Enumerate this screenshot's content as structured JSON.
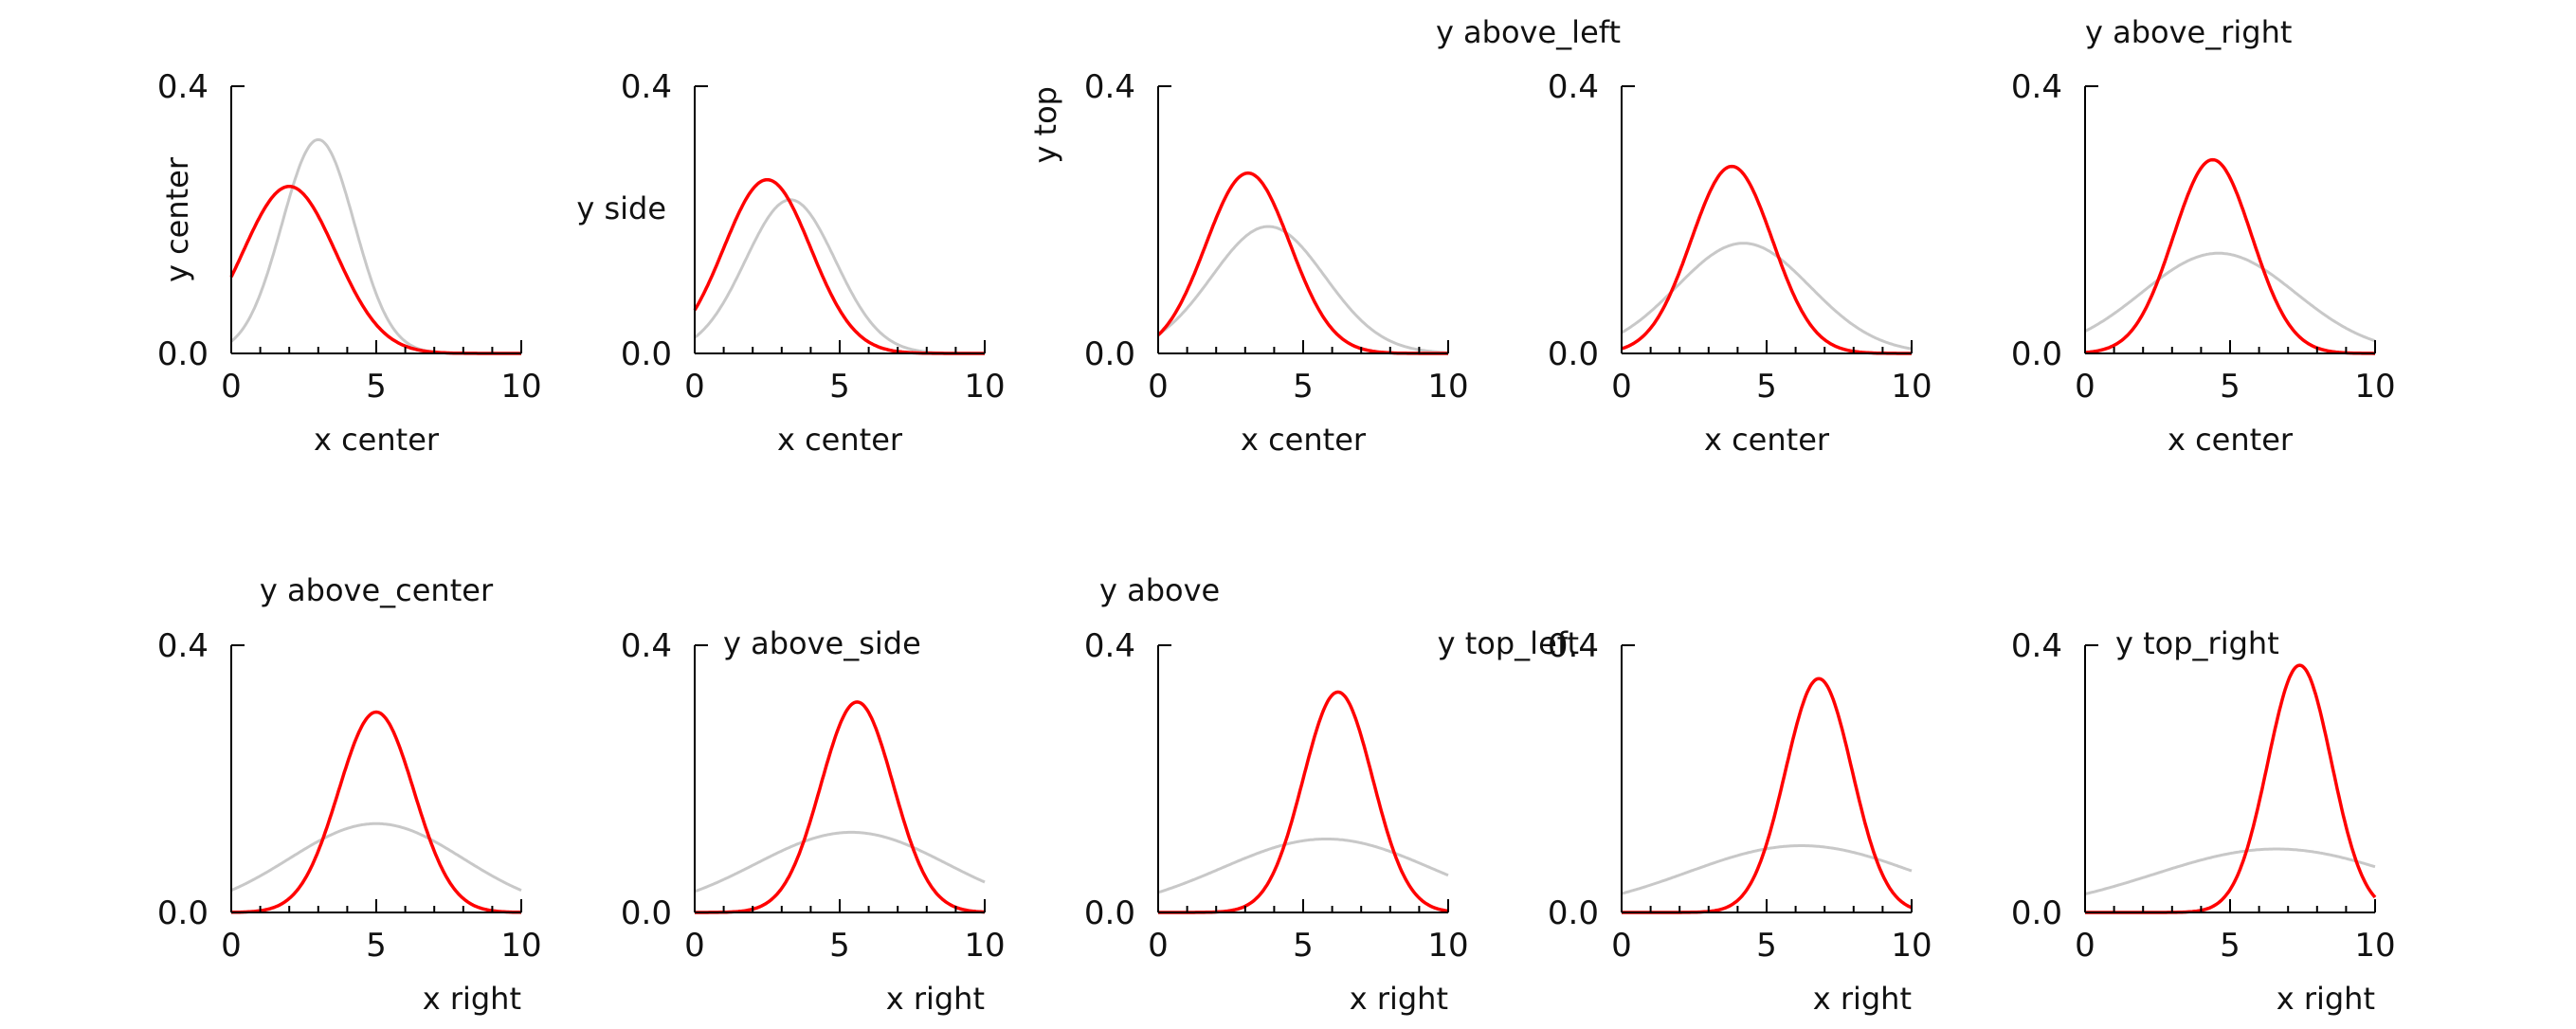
{
  "figure": {
    "background": "#ffffff",
    "axis_color": "#000000",
    "highlight_color": "#ff0000",
    "reference_color": "#c8c8c8",
    "shared_xlim": [
      0,
      10
    ],
    "shared_ylim": [
      0,
      0.4
    ],
    "x_ticks": [
      0,
      5,
      10
    ],
    "x_tick_labels": [
      "0",
      "5",
      "10"
    ],
    "y_ticks": [
      0,
      0.4
    ],
    "y_tick_labels": [
      "0.0",
      "0.4"
    ]
  },
  "chart_data": [
    {
      "type": "line",
      "xlabel": "x center",
      "ylabel": "y center",
      "xlabel_pos": "center",
      "ylabel_pos": "center",
      "xlim": [
        0,
        10
      ],
      "ylim": [
        0,
        0.4
      ],
      "series": [
        {
          "name": "red curve",
          "mean": 2.0,
          "sd": 1.6,
          "peak": 0.25
        },
        {
          "name": "gray curve",
          "mean": 3.0,
          "sd": 1.25,
          "peak": 0.32
        }
      ]
    },
    {
      "type": "line",
      "xlabel": "x center",
      "ylabel": "y side",
      "xlabel_pos": "center",
      "ylabel_pos": "side",
      "xlim": [
        0,
        10
      ],
      "ylim": [
        0,
        0.4
      ],
      "series": [
        {
          "name": "red curve",
          "mean": 2.5,
          "sd": 1.5,
          "peak": 0.26
        },
        {
          "name": "gray curve",
          "mean": 3.3,
          "sd": 1.55,
          "peak": 0.23
        }
      ]
    },
    {
      "type": "line",
      "xlabel": "x center",
      "ylabel": "y top",
      "xlabel_pos": "center",
      "ylabel_pos": "top",
      "xlim": [
        0,
        10
      ],
      "ylim": [
        0,
        0.4
      ],
      "series": [
        {
          "name": "red curve",
          "mean": 3.1,
          "sd": 1.45,
          "peak": 0.27
        },
        {
          "name": "gray curve",
          "mean": 3.8,
          "sd": 1.95,
          "peak": 0.19
        }
      ]
    },
    {
      "type": "line",
      "xlabel": "x center",
      "ylabel": "y above_left",
      "xlabel_pos": "center",
      "ylabel_pos": "above_left",
      "xlim": [
        0,
        10
      ],
      "ylim": [
        0,
        0.4
      ],
      "series": [
        {
          "name": "red curve",
          "mean": 3.8,
          "sd": 1.4,
          "peak": 0.28
        },
        {
          "name": "gray curve",
          "mean": 4.2,
          "sd": 2.3,
          "peak": 0.165
        }
      ]
    },
    {
      "type": "line",
      "xlabel": "x center",
      "ylabel": "y above_right",
      "xlabel_pos": "center",
      "ylabel_pos": "above_right",
      "xlim": [
        0,
        10
      ],
      "ylim": [
        0,
        0.4
      ],
      "series": [
        {
          "name": "red curve",
          "mean": 4.4,
          "sd": 1.35,
          "peak": 0.29
        },
        {
          "name": "gray curve",
          "mean": 4.6,
          "sd": 2.65,
          "peak": 0.15
        }
      ]
    },
    {
      "type": "line",
      "xlabel": "x right",
      "ylabel": "y above_center",
      "xlabel_pos": "right",
      "ylabel_pos": "above_center",
      "xlim": [
        0,
        10
      ],
      "ylim": [
        0,
        0.4
      ],
      "series": [
        {
          "name": "red curve",
          "mean": 5.0,
          "sd": 1.3,
          "peak": 0.3
        },
        {
          "name": "gray curve",
          "mean": 5.0,
          "sd": 3.0,
          "peak": 0.133
        }
      ]
    },
    {
      "type": "line",
      "xlabel": "x right",
      "ylabel": "y above_side",
      "xlabel_pos": "right",
      "ylabel_pos": "above_side",
      "xlim": [
        0,
        10
      ],
      "ylim": [
        0,
        0.4
      ],
      "series": [
        {
          "name": "red curve",
          "mean": 5.6,
          "sd": 1.25,
          "peak": 0.315
        },
        {
          "name": "gray curve",
          "mean": 5.4,
          "sd": 3.3,
          "peak": 0.12
        }
      ]
    },
    {
      "type": "line",
      "xlabel": "x right",
      "ylabel": "y above",
      "xlabel_pos": "right",
      "ylabel_pos": "above",
      "xlim": [
        0,
        10
      ],
      "ylim": [
        0,
        0.4
      ],
      "series": [
        {
          "name": "red curve",
          "mean": 6.2,
          "sd": 1.2,
          "peak": 0.33
        },
        {
          "name": "gray curve",
          "mean": 5.8,
          "sd": 3.6,
          "peak": 0.11
        }
      ]
    },
    {
      "type": "line",
      "xlabel": "x right",
      "ylabel": "y top_left",
      "xlabel_pos": "right",
      "ylabel_pos": "top_left",
      "xlim": [
        0,
        10
      ],
      "ylim": [
        0,
        0.4
      ],
      "series": [
        {
          "name": "red curve",
          "mean": 6.8,
          "sd": 1.15,
          "peak": 0.35
        },
        {
          "name": "gray curve",
          "mean": 6.2,
          "sd": 3.9,
          "peak": 0.1
        }
      ]
    },
    {
      "type": "line",
      "xlabel": "x right",
      "ylabel": "y top_right",
      "xlabel_pos": "right",
      "ylabel_pos": "top_right",
      "xlim": [
        0,
        10
      ],
      "ylim": [
        0,
        0.4
      ],
      "series": [
        {
          "name": "red curve",
          "mean": 7.4,
          "sd": 1.1,
          "peak": 0.37
        },
        {
          "name": "gray curve",
          "mean": 6.6,
          "sd": 4.2,
          "peak": 0.095
        }
      ]
    }
  ]
}
